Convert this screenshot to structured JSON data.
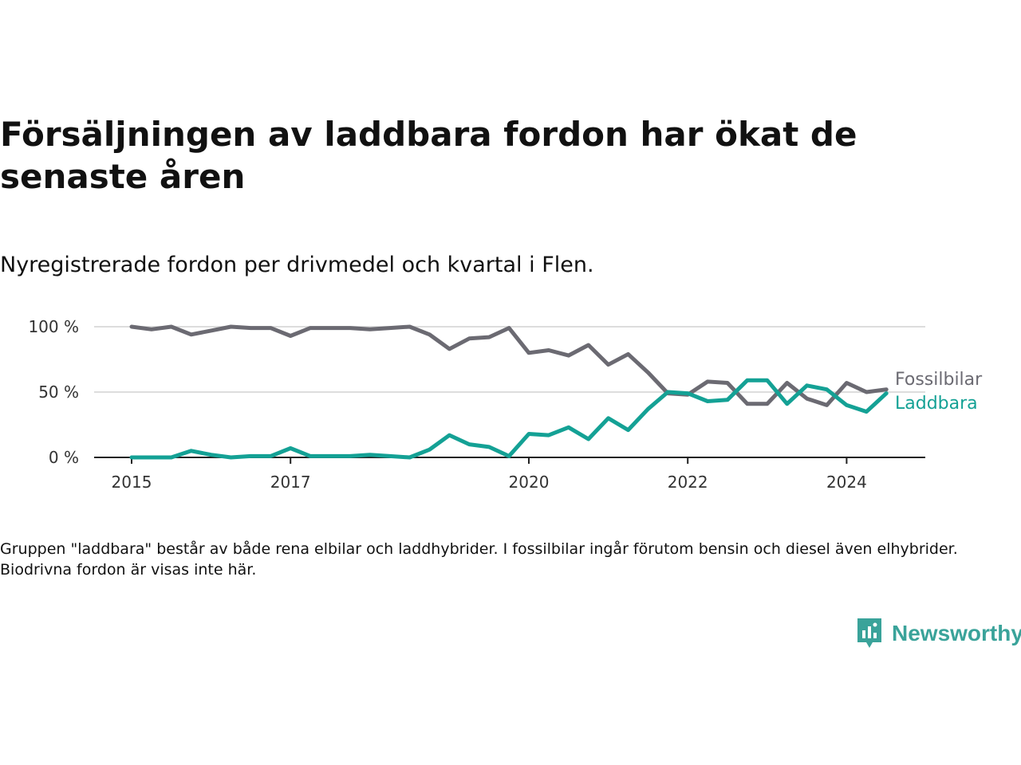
{
  "title": "Försäljningen av laddbara fordon har ökat de senaste åren",
  "subtitle": "Nyregistrerade fordon per drivmedel och kvartal i Flen.",
  "note": "Gruppen \"laddbara\" består av både rena elbilar och laddhybrider. I fossilbilar ingår förutom bensin och diesel även elhybrider. Biodrivna fordon är visas inte här.",
  "brand": {
    "name": "Newsworthy"
  },
  "colors": {
    "fossil": "#6b6a72",
    "laddbara": "#14a195",
    "grid": "#dddddd",
    "axis": "#222222"
  },
  "chart_data": {
    "type": "line",
    "x_unit": "quarter",
    "x": [
      "2015-Q1",
      "2015-Q2",
      "2015-Q3",
      "2015-Q4",
      "2016-Q1",
      "2016-Q2",
      "2016-Q3",
      "2016-Q4",
      "2017-Q1",
      "2017-Q2",
      "2017-Q3",
      "2017-Q4",
      "2018-Q1",
      "2018-Q2",
      "2018-Q3",
      "2018-Q4",
      "2019-Q1",
      "2019-Q2",
      "2019-Q3",
      "2019-Q4",
      "2020-Q1",
      "2020-Q2",
      "2020-Q3",
      "2020-Q4",
      "2021-Q1",
      "2021-Q2",
      "2021-Q3",
      "2021-Q4",
      "2022-Q1",
      "2022-Q2",
      "2022-Q3",
      "2022-Q4",
      "2023-Q1",
      "2023-Q2",
      "2023-Q3",
      "2023-Q4",
      "2024-Q1",
      "2024-Q2",
      "2024-Q3"
    ],
    "series": [
      {
        "name": "Fossilbilar",
        "color": "#6b6a72",
        "values": [
          100,
          98,
          100,
          94,
          97,
          100,
          99,
          99,
          93,
          99,
          99,
          99,
          98,
          99,
          100,
          94,
          83,
          91,
          92,
          99,
          80,
          82,
          78,
          86,
          71,
          79,
          65,
          49,
          48,
          58,
          57,
          41,
          41,
          57,
          45,
          40,
          57,
          50,
          52
        ]
      },
      {
        "name": "Laddbara",
        "color": "#14a195",
        "values": [
          0,
          0,
          0,
          5,
          2,
          0,
          1,
          1,
          7,
          1,
          1,
          1,
          2,
          1,
          0,
          6,
          17,
          10,
          8,
          1,
          18,
          17,
          23,
          14,
          30,
          21,
          37,
          50,
          49,
          43,
          44,
          59,
          59,
          41,
          55,
          52,
          40,
          35,
          49
        ]
      }
    ],
    "x_ticks": [
      "2015",
      "2017",
      "2020",
      "2022",
      "2024"
    ],
    "y_ticks": [
      "0 %",
      "50 %",
      "100 %"
    ],
    "y_tick_values": [
      0,
      50,
      100
    ],
    "ylim": [
      0,
      100
    ],
    "grid": true,
    "legend": "right, at line ends"
  }
}
